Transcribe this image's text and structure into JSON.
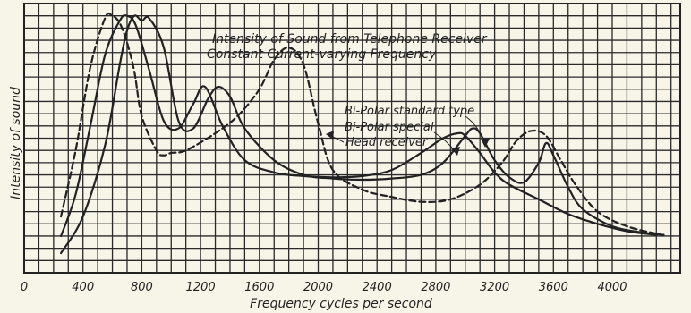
{
  "chart_data": {
    "type": "line",
    "title": "Intensity of Sound from Telephone Receiver",
    "subtitle": "Constant Current-varying Frequency",
    "xlabel": "Frequency cycles per second",
    "ylabel": "Intensity of sound",
    "xlim": [
      0,
      4400
    ],
    "ylim": [
      0,
      11
    ],
    "grid": true,
    "x_ticks": [
      {
        "value": 0,
        "label": "0"
      },
      {
        "value": 400,
        "label": "400"
      },
      {
        "value": 800,
        "label": "800"
      },
      {
        "value": 1200,
        "label": "1200"
      },
      {
        "value": 1600,
        "label": "1600"
      },
      {
        "value": 2000,
        "label": "2000"
      },
      {
        "value": 2400,
        "label": "2400"
      },
      {
        "value": 2800,
        "label": "2800"
      },
      {
        "value": 3200,
        "label": "3200"
      },
      {
        "value": 3600,
        "label": "3600"
      },
      {
        "value": 4000,
        "label": "4000"
      }
    ],
    "series": [
      {
        "name": "Bi-Polar standard type",
        "style": "solid",
        "color": "#222222",
        "x": [
          250,
          350,
          450,
          550,
          650,
          700,
          760,
          850,
          950,
          1050,
          1150,
          1230,
          1350,
          1500,
          1700,
          1900,
          2100,
          2300,
          2500,
          2700,
          2850,
          2950,
          3000,
          3100,
          3200,
          3300,
          3500,
          3700,
          3900,
          4100,
          4300
        ],
        "y": [
          1.5,
          3.2,
          6.0,
          8.9,
          10.3,
          10.5,
          10.1,
          8.3,
          6.2,
          5.9,
          6.9,
          7.6,
          6.0,
          4.6,
          4.1,
          3.95,
          3.9,
          3.95,
          4.2,
          4.9,
          5.5,
          5.7,
          5.6,
          4.9,
          4.1,
          3.6,
          3.0,
          2.4,
          2.0,
          1.7,
          1.55
        ]
      },
      {
        "name": "Bi-Polar special",
        "style": "solid",
        "color": "#222222",
        "x": [
          250,
          400,
          550,
          650,
          700,
          750,
          800,
          850,
          950,
          1050,
          1150,
          1250,
          1320,
          1400,
          1500,
          1700,
          1900,
          2100,
          2300,
          2500,
          2700,
          2850,
          3000,
          3050,
          3100,
          3200,
          3300,
          3400,
          3500,
          3550,
          3600,
          3700,
          3800,
          4000,
          4200,
          4350
        ],
        "y": [
          0.8,
          2.3,
          5.2,
          8.5,
          9.9,
          10.5,
          10.3,
          10.4,
          9.2,
          6.2,
          5.9,
          7.1,
          7.6,
          7.2,
          5.9,
          4.6,
          4.0,
          3.85,
          3.8,
          3.85,
          4.0,
          4.5,
          5.6,
          5.9,
          5.7,
          4.6,
          3.9,
          3.7,
          4.5,
          5.3,
          4.8,
          3.5,
          2.6,
          1.9,
          1.65,
          1.55
        ]
      },
      {
        "name": "Head receiver",
        "style": "dashed",
        "color": "#222222",
        "x": [
          250,
          350,
          450,
          550,
          600,
          650,
          700,
          750,
          800,
          900,
          950,
          1000,
          1100,
          1300,
          1450,
          1600,
          1700,
          1800,
          1900,
          2000,
          2100,
          2300,
          2500,
          2700,
          2900,
          3100,
          3250,
          3350,
          3450,
          3550,
          3650,
          3750,
          3900,
          4100,
          4300
        ],
        "y": [
          2.3,
          5.0,
          8.4,
          10.4,
          10.5,
          10.2,
          9.4,
          8.2,
          6.4,
          5.0,
          4.8,
          4.9,
          5.0,
          5.7,
          6.4,
          7.5,
          8.7,
          9.2,
          8.5,
          6.1,
          4.2,
          3.4,
          3.1,
          2.9,
          3.0,
          3.6,
          4.5,
          5.4,
          5.8,
          5.6,
          4.6,
          3.6,
          2.5,
          1.9,
          1.6
        ]
      }
    ],
    "legend": [
      "Bi-Polar standard type",
      "Bi-Polar special",
      "Head receiver"
    ]
  }
}
